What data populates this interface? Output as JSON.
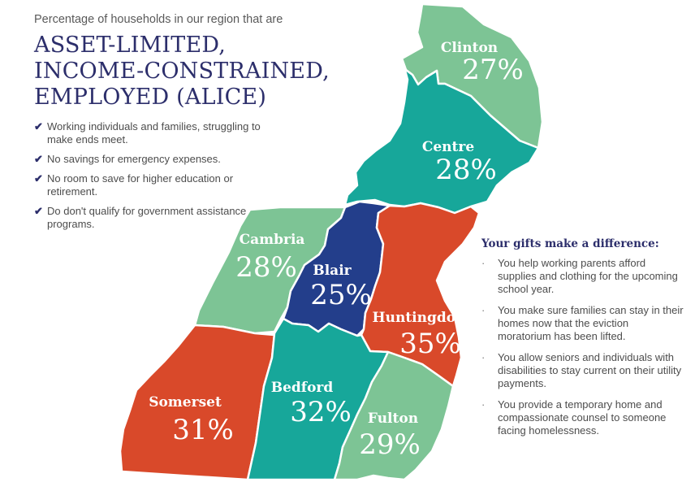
{
  "header": {
    "intro": "Percentage of households in our region that are",
    "headline_lines": [
      "ASSET-LIMITED,",
      "INCOME-CONSTRAINED,",
      "EMPLOYED (ALICE)"
    ]
  },
  "checklist": [
    "Working individuals and families, struggling to make ends meet.",
    "No savings for emergency expenses.",
    "No room to save for higher education or retirement.",
    "Do don't qualify for government assistance programs."
  ],
  "check_icon": "checkmark-icon",
  "counties": [
    {
      "name": "Clinton",
      "percent": "27%",
      "color": "#7dc495"
    },
    {
      "name": "Centre",
      "percent": "28%",
      "color": "#17a79a"
    },
    {
      "name": "Cambria",
      "percent": "28%",
      "color": "#7dc495"
    },
    {
      "name": "Blair",
      "percent": "25%",
      "color": "#233e8b"
    },
    {
      "name": "Huntingdon",
      "percent": "35%",
      "color": "#d9492a"
    },
    {
      "name": "Somerset",
      "percent": "31%",
      "color": "#d9492a"
    },
    {
      "name": "Bedford",
      "percent": "32%",
      "color": "#17a79a"
    },
    {
      "name": "Fulton",
      "percent": "29%",
      "color": "#7dc495"
    }
  ],
  "gifts": {
    "title": "Your gifts make a difference:",
    "items": [
      "You help working parents afford supplies and clothing for the upcoming school year.",
      "You make sure families can stay in their homes now that the eviction moratorium has been lifted.",
      "You allow seniors and individuals with disabilities to stay current on their utility payments.",
      "You provide a temporary home and compassionate counsel to someone facing homelessness."
    ]
  }
}
